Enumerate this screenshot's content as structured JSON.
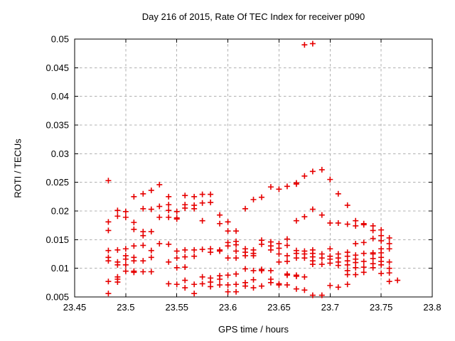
{
  "page": {
    "background": "#ffffff"
  },
  "chart_data": {
    "type": "scatter",
    "title": "Day 216 of 2015, Rate Of TEC Index for receiver p090",
    "xlabel": "GPS time / hours",
    "ylabel": "ROTI / TECUs",
    "xlim": [
      23.45,
      23.8
    ],
    "ylim": [
      0.005,
      0.05
    ],
    "xticks": [
      23.45,
      23.5,
      23.55,
      23.6,
      23.65,
      23.7,
      23.75,
      23.8
    ],
    "xtick_labels": [
      "23.45",
      "23.5",
      "23.55",
      "23.6",
      "23.65",
      "23.7",
      "23.75",
      "23.8"
    ],
    "yticks": [
      0.005,
      0.01,
      0.015,
      0.02,
      0.025,
      0.03,
      0.035,
      0.04,
      0.045,
      0.05
    ],
    "ytick_labels": [
      "0.005",
      "0.01",
      "0.015",
      "0.02",
      "0.025",
      "0.03",
      "0.035",
      "0.04",
      "0.045",
      "0.05"
    ],
    "grid": true,
    "grid_style": "dashed",
    "legend": "none",
    "marker": "plus",
    "marker_color": "#e60000",
    "grid_color": "#b0b0b0",
    "axis_color": "#000000",
    "series": [
      {
        "name": "ROTI",
        "points": [
          [
            23.483,
            0.0253
          ],
          [
            23.483,
            0.0181
          ],
          [
            23.483,
            0.0166
          ],
          [
            23.483,
            0.0131
          ],
          [
            23.483,
            0.0119
          ],
          [
            23.483,
            0.0113
          ],
          [
            23.483,
            0.0077
          ],
          [
            23.483,
            0.0056
          ],
          [
            23.492,
            0.0201
          ],
          [
            23.492,
            0.0191
          ],
          [
            23.492,
            0.0132
          ],
          [
            23.492,
            0.0111
          ],
          [
            23.492,
            0.0106
          ],
          [
            23.492,
            0.0085
          ],
          [
            23.492,
            0.0081
          ],
          [
            23.492,
            0.0076
          ],
          [
            23.5,
            0.0199
          ],
          [
            23.5,
            0.0189
          ],
          [
            23.5,
            0.0134
          ],
          [
            23.5,
            0.0122
          ],
          [
            23.5,
            0.0116
          ],
          [
            23.5,
            0.0106
          ],
          [
            23.5,
            0.0095
          ],
          [
            23.508,
            0.0225
          ],
          [
            23.508,
            0.018
          ],
          [
            23.508,
            0.0168
          ],
          [
            23.508,
            0.0139
          ],
          [
            23.508,
            0.0119
          ],
          [
            23.508,
            0.0113
          ],
          [
            23.508,
            0.0095
          ],
          [
            23.508,
            0.0093
          ],
          [
            23.517,
            0.023
          ],
          [
            23.517,
            0.0204
          ],
          [
            23.517,
            0.0164
          ],
          [
            23.517,
            0.0157
          ],
          [
            23.517,
            0.014
          ],
          [
            23.517,
            0.0113
          ],
          [
            23.517,
            0.0094
          ],
          [
            23.525,
            0.0236
          ],
          [
            23.525,
            0.0203
          ],
          [
            23.525,
            0.0164
          ],
          [
            23.525,
            0.0131
          ],
          [
            23.525,
            0.0119
          ],
          [
            23.525,
            0.0094
          ],
          [
            23.533,
            0.0246
          ],
          [
            23.533,
            0.0208
          ],
          [
            23.533,
            0.0189
          ],
          [
            23.533,
            0.0143
          ],
          [
            23.542,
            0.0225
          ],
          [
            23.542,
            0.0211
          ],
          [
            23.542,
            0.0201
          ],
          [
            23.542,
            0.0189
          ],
          [
            23.542,
            0.0142
          ],
          [
            23.542,
            0.0111
          ],
          [
            23.542,
            0.0073
          ],
          [
            23.55,
            0.0199
          ],
          [
            23.55,
            0.0188
          ],
          [
            23.55,
            0.0186
          ],
          [
            23.55,
            0.013
          ],
          [
            23.55,
            0.0118
          ],
          [
            23.55,
            0.0101
          ],
          [
            23.55,
            0.0072
          ],
          [
            23.558,
            0.0227
          ],
          [
            23.558,
            0.0211
          ],
          [
            23.558,
            0.0205
          ],
          [
            23.558,
            0.0132
          ],
          [
            23.558,
            0.012
          ],
          [
            23.558,
            0.0102
          ],
          [
            23.558,
            0.0079
          ],
          [
            23.558,
            0.0066
          ],
          [
            23.567,
            0.0225
          ],
          [
            23.567,
            0.021
          ],
          [
            23.567,
            0.0204
          ],
          [
            23.567,
            0.0132
          ],
          [
            23.567,
            0.0121
          ],
          [
            23.567,
            0.0072
          ],
          [
            23.567,
            0.0056
          ],
          [
            23.575,
            0.0229
          ],
          [
            23.575,
            0.0214
          ],
          [
            23.575,
            0.0183
          ],
          [
            23.575,
            0.0133
          ],
          [
            23.575,
            0.0085
          ],
          [
            23.575,
            0.0073
          ],
          [
            23.583,
            0.0229
          ],
          [
            23.583,
            0.0215
          ],
          [
            23.583,
            0.0134
          ],
          [
            23.583,
            0.0128
          ],
          [
            23.583,
            0.0083
          ],
          [
            23.583,
            0.0076
          ],
          [
            23.583,
            0.0068
          ],
          [
            23.592,
            0.0193
          ],
          [
            23.592,
            0.0178
          ],
          [
            23.592,
            0.0132
          ],
          [
            23.592,
            0.013
          ],
          [
            23.592,
            0.0087
          ],
          [
            23.592,
            0.0081
          ],
          [
            23.592,
            0.0071
          ],
          [
            23.6,
            0.0181
          ],
          [
            23.6,
            0.0165
          ],
          [
            23.6,
            0.0145
          ],
          [
            23.6,
            0.0139
          ],
          [
            23.6,
            0.0118
          ],
          [
            23.6,
            0.0088
          ],
          [
            23.6,
            0.0071
          ],
          [
            23.6,
            0.0059
          ],
          [
            23.608,
            0.0165
          ],
          [
            23.608,
            0.0147
          ],
          [
            23.608,
            0.0141
          ],
          [
            23.608,
            0.013
          ],
          [
            23.608,
            0.0118
          ],
          [
            23.608,
            0.009
          ],
          [
            23.608,
            0.0072
          ],
          [
            23.608,
            0.0059
          ],
          [
            23.617,
            0.0204
          ],
          [
            23.617,
            0.0134
          ],
          [
            23.617,
            0.0128
          ],
          [
            23.617,
            0.0122
          ],
          [
            23.617,
            0.0099
          ],
          [
            23.617,
            0.0075
          ],
          [
            23.617,
            0.0069
          ],
          [
            23.625,
            0.022
          ],
          [
            23.625,
            0.0132
          ],
          [
            23.625,
            0.0126
          ],
          [
            23.625,
            0.0122
          ],
          [
            23.625,
            0.0096
          ],
          [
            23.625,
            0.008
          ],
          [
            23.625,
            0.0066
          ],
          [
            23.633,
            0.0224
          ],
          [
            23.633,
            0.0149
          ],
          [
            23.633,
            0.0142
          ],
          [
            23.633,
            0.0098
          ],
          [
            23.633,
            0.0096
          ],
          [
            23.633,
            0.0069
          ],
          [
            23.642,
            0.0242
          ],
          [
            23.642,
            0.0146
          ],
          [
            23.642,
            0.0139
          ],
          [
            23.642,
            0.0132
          ],
          [
            23.642,
            0.0096
          ],
          [
            23.642,
            0.0081
          ],
          [
            23.642,
            0.0075
          ],
          [
            23.65,
            0.0238
          ],
          [
            23.65,
            0.0143
          ],
          [
            23.65,
            0.0135
          ],
          [
            23.65,
            0.0125
          ],
          [
            23.65,
            0.0111
          ],
          [
            23.65,
            0.0073
          ],
          [
            23.65,
            0.0071
          ],
          [
            23.658,
            0.0243
          ],
          [
            23.658,
            0.0151
          ],
          [
            23.658,
            0.014
          ],
          [
            23.658,
            0.0122
          ],
          [
            23.658,
            0.0112
          ],
          [
            23.658,
            0.009
          ],
          [
            23.658,
            0.0088
          ],
          [
            23.658,
            0.0071
          ],
          [
            23.667,
            0.0249
          ],
          [
            23.667,
            0.0247
          ],
          [
            23.667,
            0.0183
          ],
          [
            23.667,
            0.0131
          ],
          [
            23.667,
            0.0126
          ],
          [
            23.667,
            0.0118
          ],
          [
            23.667,
            0.0088
          ],
          [
            23.667,
            0.0086
          ],
          [
            23.667,
            0.0064
          ],
          [
            23.675,
            0.049
          ],
          [
            23.675,
            0.0261
          ],
          [
            23.675,
            0.019
          ],
          [
            23.675,
            0.013
          ],
          [
            23.675,
            0.0125
          ],
          [
            23.675,
            0.0118
          ],
          [
            23.675,
            0.0085
          ],
          [
            23.675,
            0.0062
          ],
          [
            23.683,
            0.0492
          ],
          [
            23.683,
            0.0269
          ],
          [
            23.683,
            0.0203
          ],
          [
            23.683,
            0.0132
          ],
          [
            23.683,
            0.0126
          ],
          [
            23.683,
            0.012
          ],
          [
            23.683,
            0.0113
          ],
          [
            23.683,
            0.0107
          ],
          [
            23.683,
            0.0053
          ],
          [
            23.692,
            0.0272
          ],
          [
            23.692,
            0.0193
          ],
          [
            23.692,
            0.0125
          ],
          [
            23.692,
            0.0118
          ],
          [
            23.692,
            0.0107
          ],
          [
            23.692,
            0.0053
          ],
          [
            23.7,
            0.0255
          ],
          [
            23.7,
            0.0179
          ],
          [
            23.7,
            0.0134
          ],
          [
            23.7,
            0.0121
          ],
          [
            23.7,
            0.0116
          ],
          [
            23.7,
            0.0109
          ],
          [
            23.7,
            0.007
          ],
          [
            23.708,
            0.023
          ],
          [
            23.708,
            0.0179
          ],
          [
            23.708,
            0.0125
          ],
          [
            23.708,
            0.0118
          ],
          [
            23.708,
            0.0111
          ],
          [
            23.708,
            0.0105
          ],
          [
            23.708,
            0.0067
          ],
          [
            23.717,
            0.021
          ],
          [
            23.717,
            0.0177
          ],
          [
            23.717,
            0.0128
          ],
          [
            23.717,
            0.0121
          ],
          [
            23.717,
            0.0113
          ],
          [
            23.717,
            0.0106
          ],
          [
            23.717,
            0.0096
          ],
          [
            23.717,
            0.0089
          ],
          [
            23.717,
            0.0072
          ],
          [
            23.725,
            0.0183
          ],
          [
            23.725,
            0.0174
          ],
          [
            23.725,
            0.0143
          ],
          [
            23.725,
            0.0123
          ],
          [
            23.725,
            0.0116
          ],
          [
            23.725,
            0.011
          ],
          [
            23.725,
            0.0101
          ],
          [
            23.725,
            0.0089
          ],
          [
            23.733,
            0.0178
          ],
          [
            23.733,
            0.0176
          ],
          [
            23.733,
            0.0145
          ],
          [
            23.733,
            0.0126
          ],
          [
            23.733,
            0.0112
          ],
          [
            23.733,
            0.0102
          ],
          [
            23.733,
            0.0093
          ],
          [
            23.742,
            0.0174
          ],
          [
            23.742,
            0.0166
          ],
          [
            23.742,
            0.0152
          ],
          [
            23.742,
            0.0127
          ],
          [
            23.742,
            0.0125
          ],
          [
            23.742,
            0.0117
          ],
          [
            23.742,
            0.0108
          ],
          [
            23.742,
            0.0101
          ],
          [
            23.75,
            0.0167
          ],
          [
            23.75,
            0.0157
          ],
          [
            23.75,
            0.0148
          ],
          [
            23.75,
            0.0134
          ],
          [
            23.75,
            0.0127
          ],
          [
            23.75,
            0.0119
          ],
          [
            23.75,
            0.0112
          ],
          [
            23.75,
            0.0106
          ],
          [
            23.75,
            0.0091
          ],
          [
            23.758,
            0.0153
          ],
          [
            23.758,
            0.0143
          ],
          [
            23.758,
            0.0134
          ],
          [
            23.758,
            0.0111
          ],
          [
            23.758,
            0.01
          ],
          [
            23.758,
            0.0092
          ],
          [
            23.758,
            0.0077
          ],
          [
            23.766,
            0.0079
          ]
        ]
      }
    ]
  }
}
